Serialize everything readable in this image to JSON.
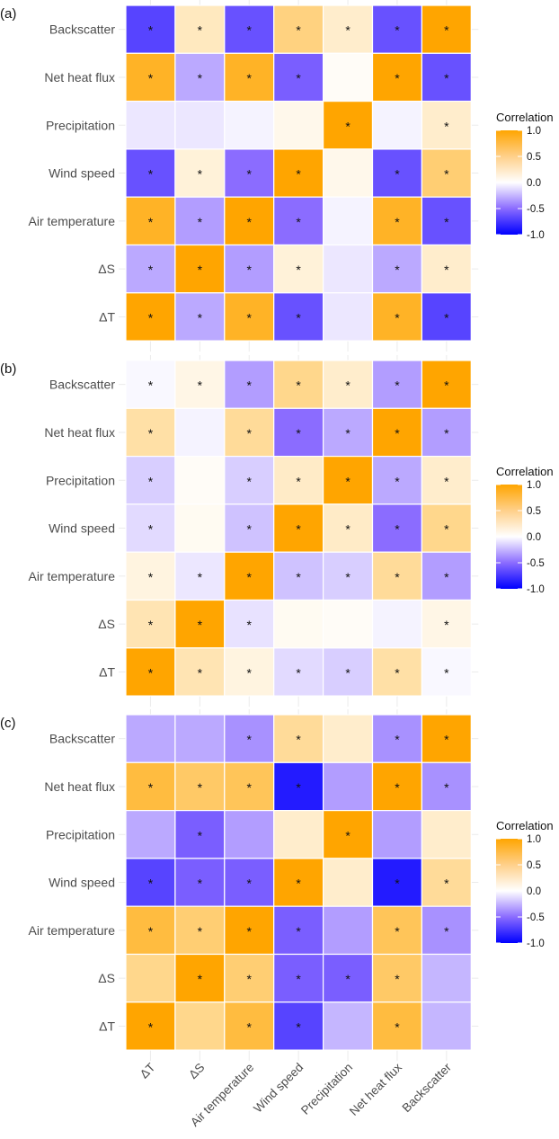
{
  "chart_data": [
    {
      "type": "heatmap",
      "panel_label": "(a)",
      "title": "",
      "xlabel": "",
      "ylabel": "",
      "x_categories": [
        "ΔT",
        "ΔS",
        "Air temperature",
        "Wind speed",
        "Precipitation",
        "Net heat flux",
        "Backscatter"
      ],
      "y_categories": [
        "Backscatter",
        "Net heat flux",
        "Precipitation",
        "Wind speed",
        "Air temperature",
        "ΔS",
        "ΔT"
      ],
      "values": [
        [
          -0.75,
          0.25,
          -0.7,
          0.5,
          0.2,
          -0.7,
          1.0
        ],
        [
          0.85,
          -0.35,
          0.85,
          -0.65,
          0.03,
          1.0,
          -0.7
        ],
        [
          -0.1,
          -0.1,
          -0.05,
          0.08,
          1.0,
          -0.05,
          0.2
        ],
        [
          -0.7,
          0.15,
          -0.6,
          1.0,
          0.08,
          -0.7,
          0.55
        ],
        [
          0.85,
          -0.4,
          1.0,
          -0.6,
          -0.05,
          0.85,
          -0.7
        ],
        [
          -0.35,
          1.0,
          -0.4,
          0.15,
          -0.1,
          -0.35,
          0.2
        ],
        [
          1.0,
          -0.35,
          0.85,
          -0.7,
          -0.1,
          0.85,
          -0.75
        ]
      ],
      "significant": [
        [
          true,
          true,
          true,
          true,
          true,
          true,
          true
        ],
        [
          true,
          true,
          true,
          true,
          false,
          true,
          true
        ],
        [
          false,
          false,
          false,
          false,
          true,
          false,
          true
        ],
        [
          true,
          true,
          true,
          true,
          false,
          true,
          true
        ],
        [
          true,
          true,
          true,
          true,
          false,
          true,
          true
        ],
        [
          true,
          true,
          true,
          true,
          false,
          true,
          true
        ],
        [
          true,
          true,
          true,
          true,
          false,
          true,
          true
        ]
      ],
      "significance_marker": "*",
      "legend": {
        "title": "Correlation",
        "ticks": [
          "1.0",
          "0.5",
          "0.0",
          "-0.5",
          "-1.0"
        ],
        "range": [
          -1,
          1
        ],
        "colors": {
          "low": "#0000ff",
          "mid": "#ffffff",
          "high": "#ffa500"
        }
      }
    },
    {
      "type": "heatmap",
      "panel_label": "(b)",
      "title": "",
      "xlabel": "",
      "ylabel": "",
      "x_categories": [
        "ΔT",
        "ΔS",
        "Air temperature",
        "Wind speed",
        "Precipitation",
        "Net heat flux",
        "Backscatter"
      ],
      "y_categories": [
        "Backscatter",
        "Net heat flux",
        "Precipitation",
        "Wind speed",
        "Air temperature",
        "ΔS",
        "ΔT"
      ],
      "values": [
        [
          -0.03,
          0.1,
          -0.4,
          0.45,
          0.2,
          -0.4,
          1.0
        ],
        [
          0.35,
          -0.05,
          0.4,
          -0.6,
          -0.35,
          1.0,
          -0.4
        ],
        [
          -0.2,
          0.03,
          -0.2,
          0.22,
          1.0,
          -0.35,
          0.2
        ],
        [
          -0.15,
          0.05,
          -0.25,
          1.0,
          0.22,
          -0.6,
          0.45
        ],
        [
          0.12,
          -0.1,
          1.0,
          -0.25,
          -0.2,
          0.4,
          -0.4
        ],
        [
          0.3,
          1.0,
          -0.12,
          0.05,
          0.03,
          -0.05,
          0.1
        ],
        [
          1.0,
          0.3,
          0.12,
          -0.15,
          -0.2,
          0.35,
          -0.03
        ]
      ],
      "significant": [
        [
          true,
          true,
          true,
          true,
          true,
          true,
          true
        ],
        [
          true,
          false,
          true,
          true,
          true,
          true,
          true
        ],
        [
          true,
          false,
          true,
          true,
          true,
          true,
          true
        ],
        [
          true,
          false,
          true,
          true,
          true,
          true,
          true
        ],
        [
          true,
          true,
          true,
          true,
          true,
          true,
          true
        ],
        [
          true,
          true,
          true,
          false,
          false,
          false,
          true
        ],
        [
          true,
          true,
          true,
          true,
          true,
          true,
          true
        ]
      ],
      "significance_marker": "*",
      "legend": {
        "title": "Correlation",
        "ticks": [
          "1.0",
          "0.5",
          "0.0",
          "-0.5",
          "-1.0"
        ],
        "range": [
          -1,
          1
        ],
        "colors": {
          "low": "#0000ff",
          "mid": "#ffffff",
          "high": "#ffa500"
        }
      }
    },
    {
      "type": "heatmap",
      "panel_label": "(c)",
      "title": "",
      "xlabel": "",
      "ylabel": "",
      "x_categories": [
        "ΔT",
        "ΔS",
        "Air temperature",
        "Wind speed",
        "Precipitation",
        "Net heat flux",
        "Backscatter"
      ],
      "y_categories": [
        "Backscatter",
        "Net heat flux",
        "Precipitation",
        "Wind speed",
        "Air temperature",
        "ΔS",
        "ΔT"
      ],
      "values": [
        [
          -0.35,
          -0.35,
          -0.45,
          0.4,
          0.2,
          -0.45,
          1.0
        ],
        [
          0.75,
          0.6,
          0.65,
          -0.9,
          -0.4,
          1.0,
          -0.45
        ],
        [
          -0.35,
          -0.65,
          -0.4,
          0.2,
          1.0,
          -0.4,
          0.2
        ],
        [
          -0.75,
          -0.65,
          -0.65,
          1.0,
          0.2,
          -0.9,
          0.4
        ],
        [
          0.75,
          0.55,
          1.0,
          -0.65,
          -0.4,
          0.65,
          -0.45
        ],
        [
          0.45,
          1.0,
          0.55,
          -0.65,
          -0.65,
          0.6,
          -0.3
        ],
        [
          1.0,
          0.45,
          0.75,
          -0.75,
          -0.3,
          0.75,
          -0.3
        ]
      ],
      "significant": [
        [
          false,
          false,
          true,
          true,
          false,
          true,
          true
        ],
        [
          true,
          true,
          true,
          true,
          false,
          true,
          true
        ],
        [
          false,
          true,
          false,
          false,
          true,
          false,
          false
        ],
        [
          true,
          true,
          true,
          true,
          false,
          true,
          true
        ],
        [
          true,
          true,
          true,
          true,
          false,
          true,
          true
        ],
        [
          false,
          true,
          true,
          true,
          true,
          true,
          false
        ],
        [
          true,
          false,
          true,
          true,
          false,
          true,
          false
        ]
      ],
      "significance_marker": "*",
      "legend": {
        "title": "Correlation",
        "ticks": [
          "1.0",
          "0.5",
          "0.0",
          "-0.5",
          "-1.0"
        ],
        "range": [
          -1,
          1
        ],
        "colors": {
          "low": "#0000ff",
          "mid": "#ffffff",
          "high": "#ffa500"
        }
      }
    }
  ]
}
